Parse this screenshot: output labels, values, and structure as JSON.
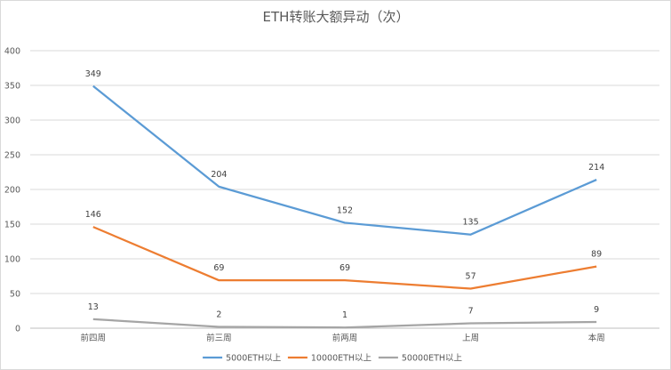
{
  "chart_data": {
    "type": "line",
    "title": "ETH转账大额异动（次）",
    "xlabel": "",
    "ylabel": "",
    "categories": [
      "前四周",
      "前三周",
      "前两周",
      "上周",
      "本周"
    ],
    "ylim": [
      0,
      400
    ],
    "yticks": [
      0,
      50,
      100,
      150,
      200,
      250,
      300,
      350,
      400
    ],
    "grid": true,
    "legend_position": "bottom",
    "series": [
      {
        "name": "5000ETH以上",
        "color": "#5b9bd5",
        "values": [
          349,
          204,
          152,
          135,
          214
        ]
      },
      {
        "name": "10000ETH以上",
        "color": "#ed7d31",
        "values": [
          146,
          69,
          69,
          57,
          89
        ]
      },
      {
        "name": "50000ETH以上",
        "color": "#a5a5a5",
        "values": [
          13,
          2,
          1,
          7,
          9
        ]
      }
    ]
  }
}
